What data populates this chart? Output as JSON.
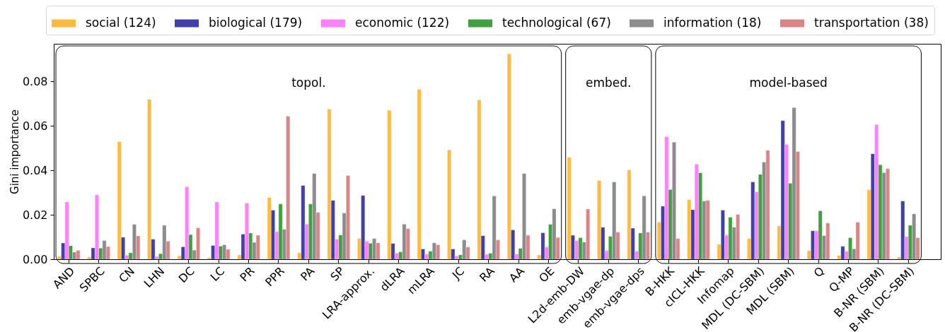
{
  "chart_data": {
    "type": "bar",
    "ylabel": "Gini importance",
    "categories": [
      "AND",
      "SPBC",
      "CN",
      "LHN",
      "DC",
      "LC",
      "PR",
      "PPR",
      "PA",
      "SP",
      "LRA-approx.",
      "dLRA",
      "mLRA",
      "JC",
      "RA",
      "AA",
      "OE",
      "L2d-emb-DW",
      "emb-vgae-dp",
      "emb-vgae-dps",
      "B-HKK",
      "cICL-HKK",
      "Infomap",
      "MDL (DC-SBM)",
      "MDL (SBM)",
      "Q",
      "Q-MP",
      "B-NR (SBM)",
      "B-NR (DC-SBM)"
    ],
    "series": [
      {
        "name": "social (124)",
        "color": "#ffbb40",
        "values": [
          0.0013,
          0.001,
          0.0529,
          0.072,
          0.0015,
          0.0007,
          0.0019,
          0.0278,
          0.0029,
          0.0676,
          0.0093,
          0.067,
          0.0765,
          0.0492,
          0.0717,
          0.0925,
          0.0019,
          0.0459,
          0.0355,
          0.0402,
          0.0167,
          0.0268,
          0.0067,
          0.0093,
          0.015,
          0.0039,
          0.0017,
          0.0313,
          0.001
        ]
      },
      {
        "name": "biological (179)",
        "color": "#4040a8",
        "values": [
          0.0073,
          0.0051,
          0.0099,
          0.009,
          0.0056,
          0.0062,
          0.0113,
          0.0221,
          0.0332,
          0.0265,
          0.0287,
          0.0071,
          0.0046,
          0.0046,
          0.0106,
          0.0132,
          0.0119,
          0.0108,
          0.0144,
          0.014,
          0.0239,
          0.0223,
          0.0221,
          0.0348,
          0.0624,
          0.0128,
          0.0058,
          0.0475,
          0.0262
        ]
      },
      {
        "name": "economic (122)",
        "color": "#ff80ff",
        "values": [
          0.0258,
          0.029,
          0.0018,
          0.0012,
          0.0326,
          0.0258,
          0.0253,
          0.0124,
          0.0158,
          0.009,
          0.0081,
          0.0027,
          0.0023,
          0.0014,
          0.0022,
          0.0023,
          0.0055,
          0.0084,
          0.0039,
          0.0036,
          0.0552,
          0.0428,
          0.0109,
          0.0304,
          0.0517,
          0.0128,
          0.0036,
          0.0606,
          0.0102
        ]
      },
      {
        "name": "technological (67)",
        "color": "#40a040",
        "values": [
          0.0061,
          0.005,
          0.0029,
          0.0025,
          0.0111,
          0.0059,
          0.0118,
          0.0249,
          0.0249,
          0.0109,
          0.0072,
          0.0033,
          0.0036,
          0.002,
          0.0027,
          0.0049,
          0.0157,
          0.0097,
          0.0103,
          0.0118,
          0.0314,
          0.0389,
          0.0189,
          0.0382,
          0.0342,
          0.0218,
          0.0097,
          0.0425,
          0.0153
        ]
      },
      {
        "name": "information (18)",
        "color": "#8c8c8c",
        "values": [
          0.0032,
          0.0084,
          0.0157,
          0.0153,
          0.0041,
          0.0065,
          0.0076,
          0.0135,
          0.0386,
          0.0208,
          0.0093,
          0.0158,
          0.0074,
          0.0087,
          0.0285,
          0.0386,
          0.0227,
          0.0077,
          0.0348,
          0.0285,
          0.0527,
          0.0262,
          0.0144,
          0.0437,
          0.0683,
          0.0106,
          0.0047,
          0.039,
          0.0204
        ]
      },
      {
        "name": "transportation (38)",
        "color": "#da8585",
        "values": [
          0.004,
          0.0057,
          0.0105,
          0.0081,
          0.0141,
          0.0045,
          0.0108,
          0.0644,
          0.0211,
          0.0377,
          0.0074,
          0.0138,
          0.0065,
          0.0055,
          0.0087,
          0.0108,
          0.0098,
          0.0226,
          0.0122,
          0.0122,
          0.0093,
          0.0265,
          0.0202,
          0.049,
          0.0485,
          0.0163,
          0.0167,
          0.0408,
          0.0097
        ]
      }
    ],
    "ylim": [
      0,
      0.097
    ],
    "yticks": [
      {
        "value": 0,
        "label": "0.00"
      },
      0.02,
      0.04,
      0.06,
      0.08
    ],
    "bands": [
      {
        "axis": "x",
        "from": "AND",
        "to": "OE",
        "label": "topol."
      },
      {
        "axis": "x",
        "from": "L2d-emb-DW",
        "to": "emb-vgae-dps",
        "label": "embed."
      },
      {
        "axis": "x",
        "from": "B-HKK",
        "to": "B-NR (DC-SBM)",
        "label": "model-based"
      }
    ],
    "legend": "top"
  }
}
